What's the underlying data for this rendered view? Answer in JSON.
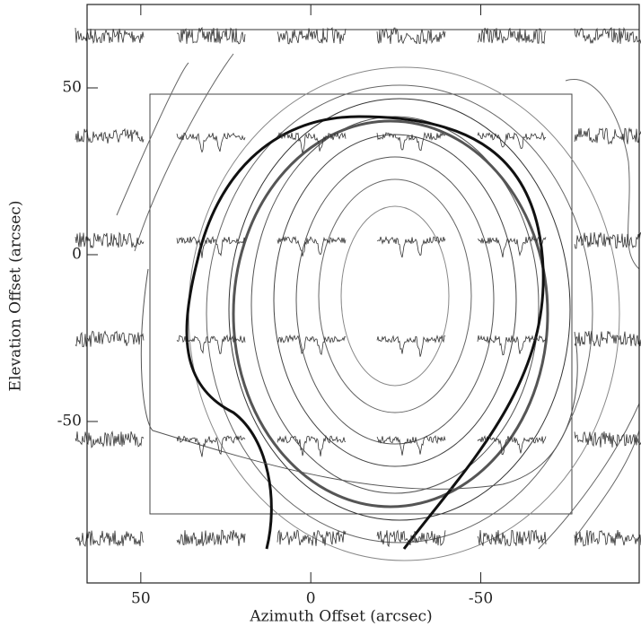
{
  "chart_data": {
    "type": "map",
    "x_label": "Azimuth Offset (arcsec)",
    "y_label": "Elevation Offset (arcsec)",
    "xlim": [
      65.8,
      -96.6
    ],
    "ylim": [
      -98.4,
      75
    ],
    "xticks": [
      50,
      0,
      -50
    ],
    "yticks": [
      50,
      0,
      -50
    ]
  }
}
